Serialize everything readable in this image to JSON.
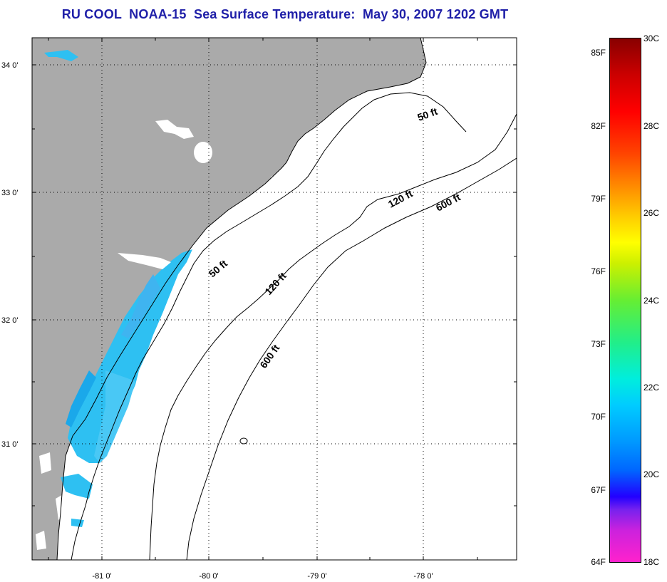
{
  "title": "RU COOL  NOAA-15  Sea Surface Temperature:  May 30, 2007 1202 GMT",
  "map": {
    "lat_ticks": [
      "34 0'",
      "33 0'",
      "32 0'",
      "31 0'"
    ],
    "lon_ticks": [
      "-81 0'",
      "-80 0'",
      "-79 0'",
      "-78 0'"
    ],
    "contours": {
      "c50_ft": "50 ft",
      "c120_ft": "120 ft",
      "c600_ft": "600 ft"
    },
    "colors": {
      "land": "#aaaaaa",
      "ocean": "#ffffff",
      "sst_water": "#2ec0f2"
    }
  },
  "colorbar": {
    "fahrenheit": [
      "85F",
      "82F",
      "79F",
      "76F",
      "73F",
      "70F",
      "67F",
      "64F"
    ],
    "celsius": [
      "30C",
      "28C",
      "26C",
      "24C",
      "22C",
      "20C",
      "18C"
    ]
  }
}
